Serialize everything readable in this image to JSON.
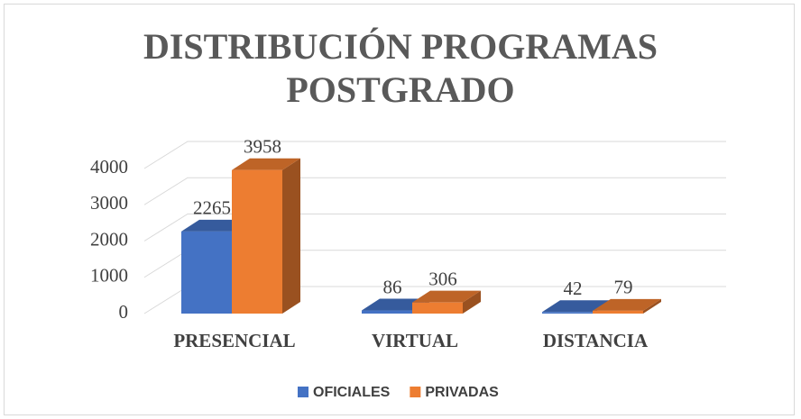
{
  "chart_data": {
    "type": "bar3d",
    "title": "DISTRIBUCIÓN PROGRAMAS POSTGRADO",
    "categories": [
      "PRESENCIAL",
      "VIRTUAL",
      "DISTANCIA"
    ],
    "series": [
      {
        "name": "OFICIALES",
        "color": "#4472c4",
        "values": [
          2265,
          86,
          42
        ]
      },
      {
        "name": "PRIVADAS",
        "color": "#ed7d31",
        "values": [
          3958,
          306,
          79
        ]
      }
    ],
    "ylim": [
      0,
      4000
    ],
    "yticks": [
      0,
      1000,
      2000,
      3000,
      4000
    ],
    "grid": true,
    "legend": "bottom"
  }
}
